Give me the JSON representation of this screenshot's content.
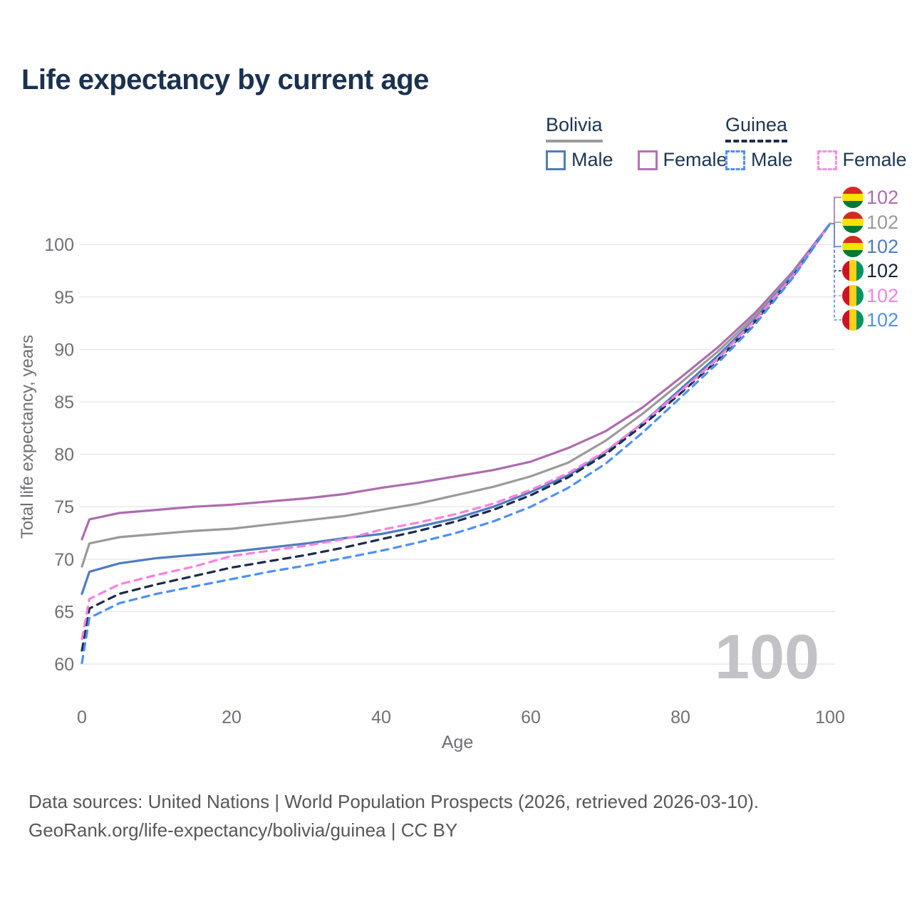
{
  "title": "Life expectancy by current age",
  "legend": {
    "groups": [
      {
        "name": "Bolivia",
        "underline": "solid",
        "underline_color": "#9b9b9b",
        "items": [
          {
            "label": "Male",
            "color": "#4f7cc0",
            "dash": false
          },
          {
            "label": "Female",
            "color": "#b671b6",
            "dash": false
          }
        ]
      },
      {
        "name": "Guinea",
        "underline": "dashed",
        "underline_color": "#1d2c4f",
        "items": [
          {
            "label": "Male",
            "color": "#4e90f5",
            "dash": true
          },
          {
            "label": "Female",
            "color": "#ff8ce0",
            "dash": true
          }
        ]
      }
    ]
  },
  "chart_data": {
    "type": "line",
    "title": "Life expectancy by current age",
    "xlabel": "Age",
    "ylabel": "Total life expectancy, years",
    "xticks": [
      0,
      20,
      40,
      60,
      80,
      100
    ],
    "yticks": [
      60,
      65,
      70,
      75,
      80,
      85,
      90,
      95,
      100
    ],
    "xlim": [
      0,
      100
    ],
    "ylim": [
      60,
      102
    ],
    "grid": "horizontal",
    "legend_position": "top-right",
    "watermark_current_age": "100",
    "x": [
      0,
      1,
      5,
      10,
      15,
      20,
      25,
      30,
      35,
      40,
      45,
      50,
      55,
      60,
      65,
      70,
      75,
      80,
      85,
      90,
      95,
      100
    ],
    "series": [
      {
        "name": "Bolivia Female",
        "country": "Bolivia",
        "sex": "Female",
        "flag": "bolivia",
        "style": "solid",
        "color": "#ae6cae",
        "label_color": "#ae6cae",
        "end_label": "102",
        "values": [
          71.9,
          73.8,
          74.4,
          74.7,
          75.0,
          75.2,
          75.5,
          75.8,
          76.2,
          76.8,
          77.3,
          77.9,
          78.5,
          79.3,
          80.6,
          82.2,
          84.5,
          87.3,
          90.2,
          93.5,
          97.4,
          102
        ]
      },
      {
        "name": "Bolivia Both sexes",
        "country": "Bolivia",
        "sex": "Both",
        "flag": "bolivia",
        "style": "solid",
        "color": "#9a9a9a",
        "label_color": "#9a9a9a",
        "end_label": "102",
        "values": [
          69.3,
          71.5,
          72.1,
          72.4,
          72.7,
          72.9,
          73.3,
          73.7,
          74.1,
          74.7,
          75.3,
          76.1,
          76.9,
          77.9,
          79.2,
          81.3,
          83.9,
          86.8,
          89.8,
          93.2,
          97.2,
          102
        ]
      },
      {
        "name": "Bolivia Male",
        "country": "Bolivia",
        "sex": "Male",
        "flag": "bolivia",
        "style": "solid",
        "color": "#4f7cc0",
        "label_color": "#4f7cc0",
        "end_label": "102",
        "values": [
          66.7,
          68.8,
          69.6,
          70.1,
          70.4,
          70.7,
          71.1,
          71.5,
          72.0,
          72.4,
          73.1,
          73.9,
          75.0,
          76.4,
          78.0,
          80.2,
          83.0,
          86.2,
          89.4,
          92.9,
          97.1,
          102
        ]
      },
      {
        "name": "Guinea Both sexes",
        "country": "Guinea",
        "sex": "Both",
        "flag": "guinea",
        "style": "dashed",
        "color": "#1b2b4a",
        "label_color": "#14223f",
        "end_label": "102",
        "values": [
          61.3,
          65.3,
          66.7,
          67.6,
          68.4,
          69.2,
          69.8,
          70.4,
          71.1,
          71.9,
          72.7,
          73.6,
          74.7,
          76.1,
          77.8,
          80.0,
          82.8,
          85.8,
          89.0,
          92.7,
          96.9,
          102
        ]
      },
      {
        "name": "Guinea Female",
        "country": "Guinea",
        "sex": "Female",
        "flag": "guinea",
        "style": "dashed",
        "color": "#fb80de",
        "label_color": "#fb80de",
        "end_label": "102",
        "values": [
          62.4,
          66.2,
          67.6,
          68.5,
          69.3,
          70.3,
          70.8,
          71.3,
          71.9,
          72.8,
          73.5,
          74.3,
          75.3,
          76.6,
          78.2,
          80.3,
          83.0,
          86.0,
          89.1,
          92.8,
          97.0,
          102
        ]
      },
      {
        "name": "Guinea Male",
        "country": "Guinea",
        "sex": "Male",
        "flag": "guinea",
        "style": "dashed",
        "color": "#4e90f5",
        "label_color": "#4e90f5",
        "end_label": "102",
        "values": [
          60.1,
          64.4,
          65.8,
          66.7,
          67.4,
          68.1,
          68.8,
          69.4,
          70.1,
          70.8,
          71.6,
          72.5,
          73.6,
          75.0,
          76.8,
          79.1,
          82.1,
          85.4,
          88.7,
          92.4,
          96.8,
          102
        ]
      }
    ],
    "flag_colors": {
      "bolivia": {
        "orientation": "horizontal",
        "stripes": [
          "#d52b1e",
          "#f9e300",
          "#007934"
        ]
      },
      "guinea": {
        "orientation": "vertical",
        "stripes": [
          "#ce1126",
          "#fcd116",
          "#009460"
        ]
      }
    }
  },
  "colors": {
    "title": "#1b3150",
    "axis_text": "#6f6f76",
    "gridline": "#e9e9ec",
    "watermark": "#c3c3c7",
    "footer_text": "#56575a"
  },
  "footer": {
    "line1": "Data sources: United Nations | World Population Prospects (2026, retrieved 2026-03-10).",
    "line2": "GeoRank.org/life-expectancy/bolivia/guinea | CC BY"
  }
}
